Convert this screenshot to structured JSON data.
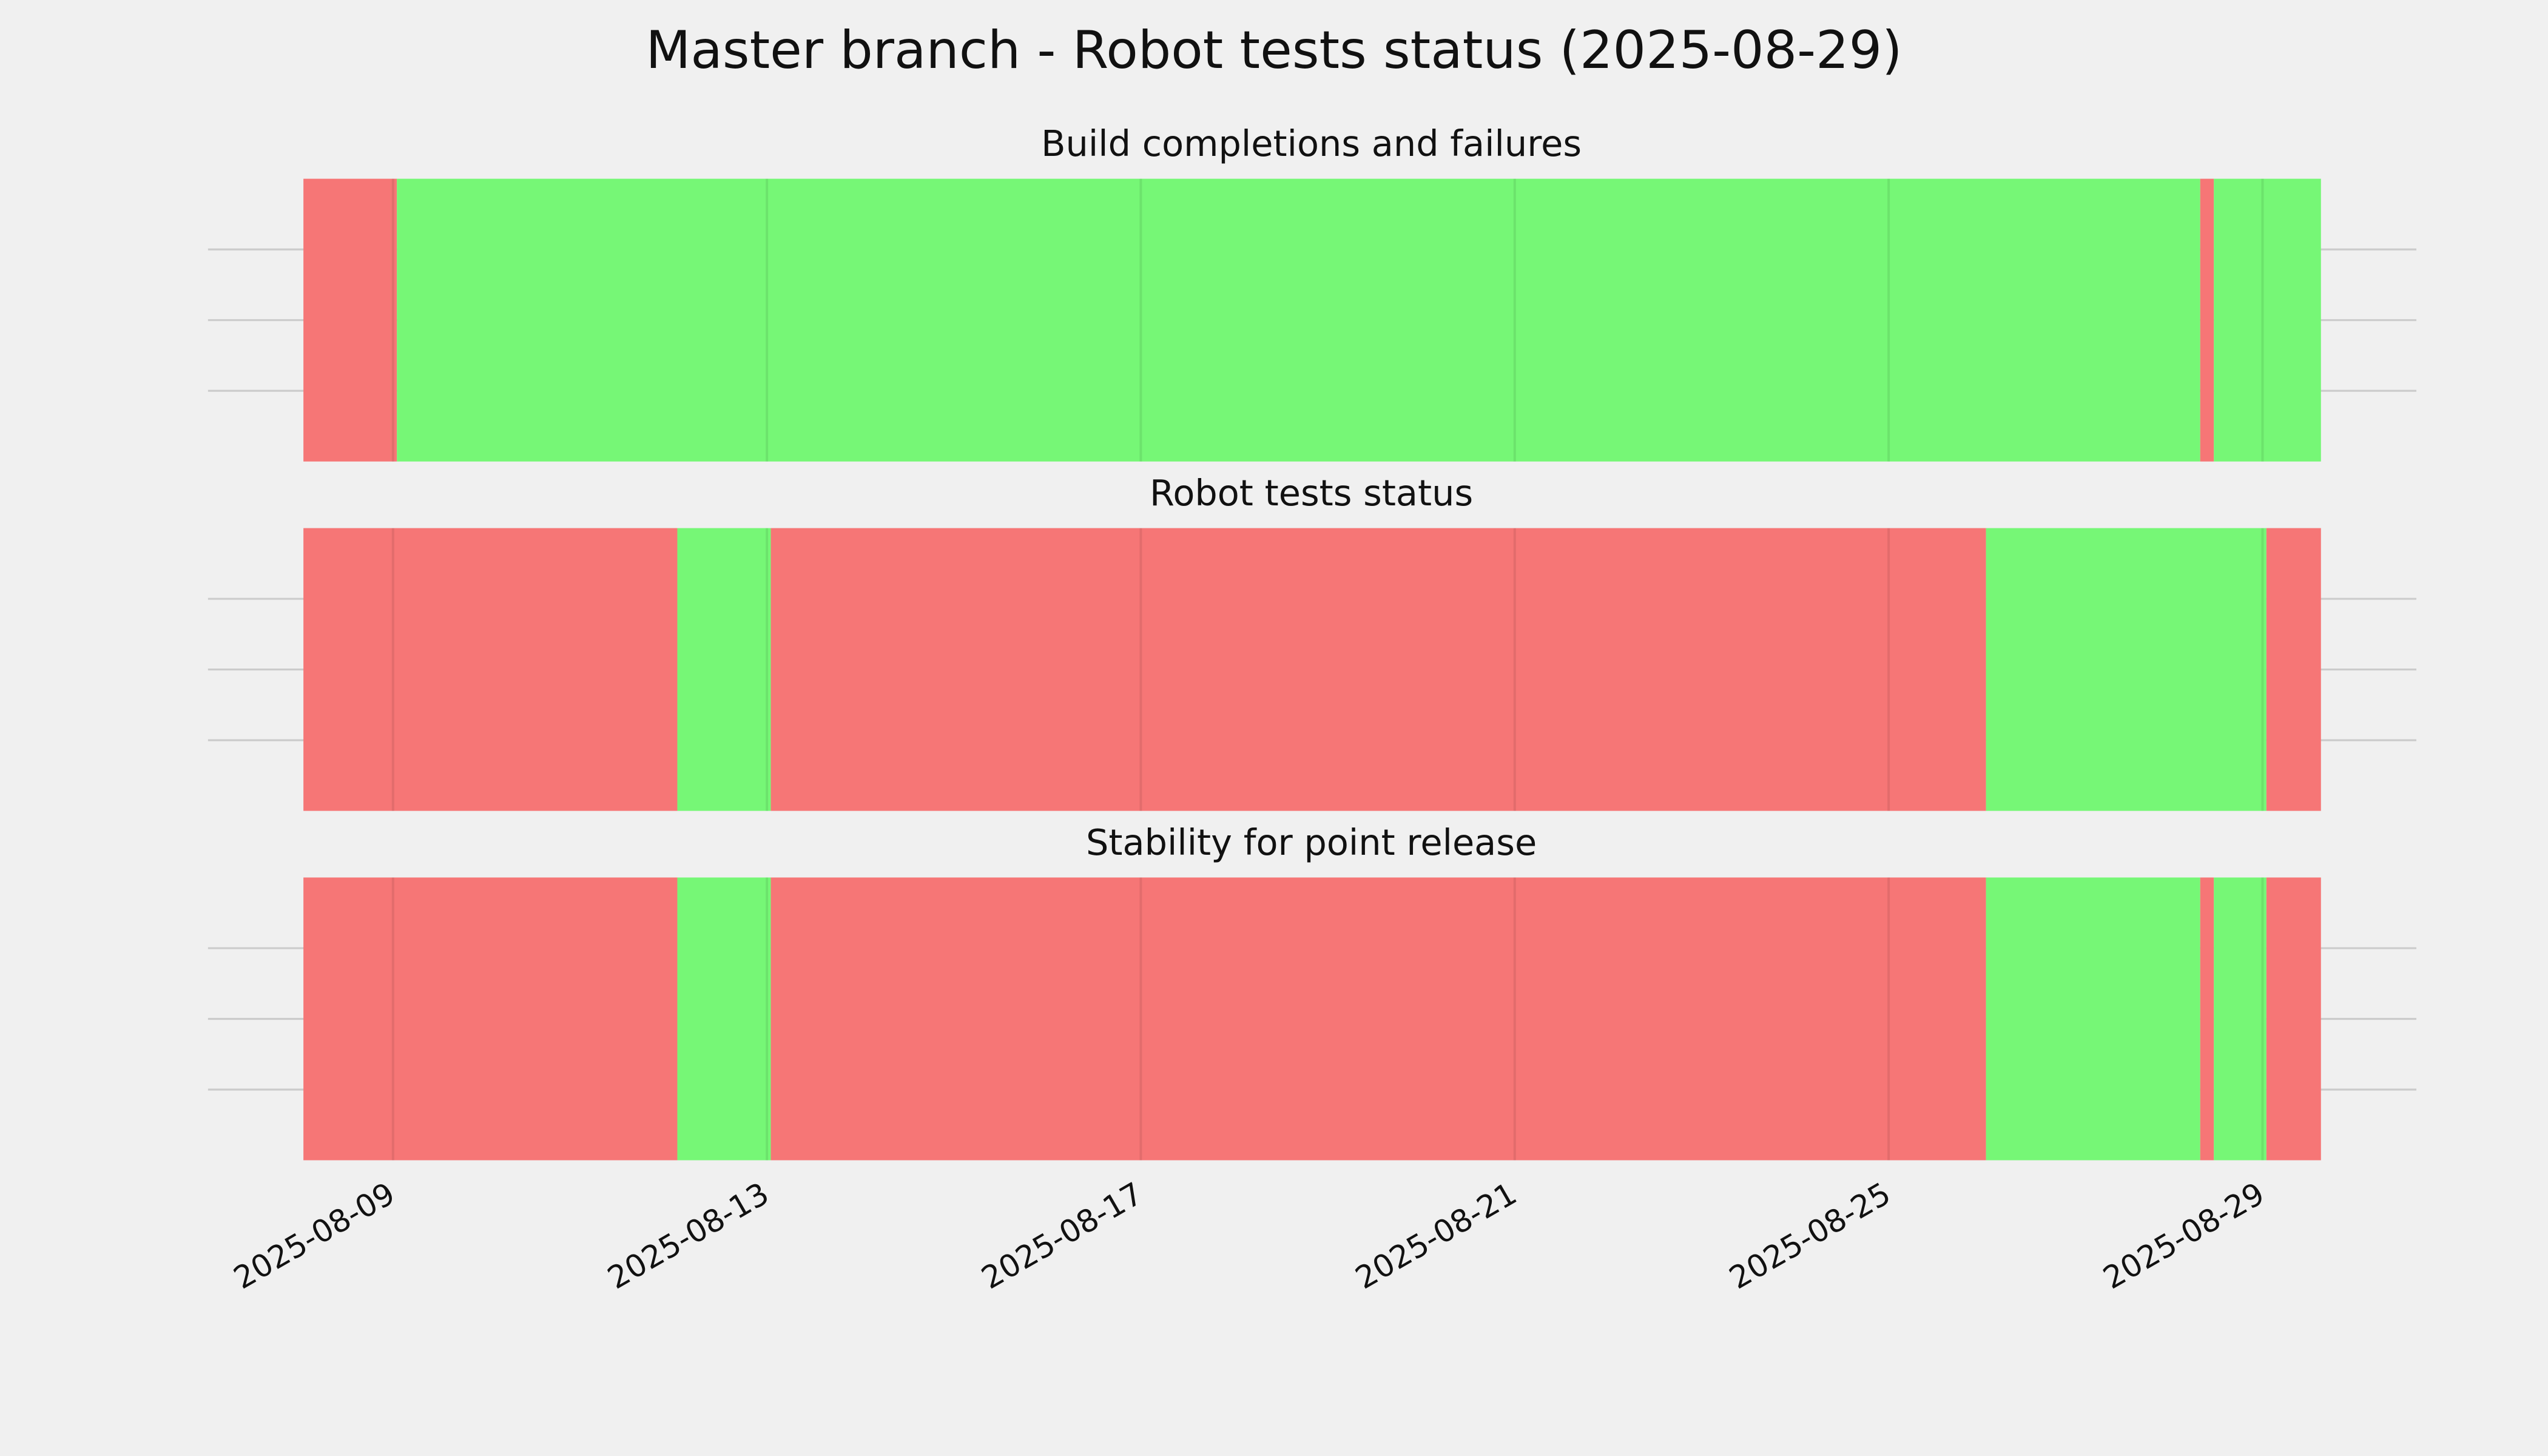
{
  "title": "Master branch - Robot tests status (2025-08-29)",
  "chart_data": [
    {
      "type": "timeline",
      "title": "Build completions and failures",
      "xlim": [
        "2025-08-07 00:30",
        "2025-08-30 15:30"
      ],
      "xticks": [
        "2025-08-09",
        "2025-08-13",
        "2025-08-17",
        "2025-08-21",
        "2025-08-25",
        "2025-08-29"
      ],
      "ylim": [
        0,
        1
      ],
      "yticks": [
        0.25,
        0.5,
        0.75
      ],
      "grid": true,
      "segments": [
        {
          "start": "2025-08-08 01:00",
          "end": "2025-08-09 01:00",
          "color": "#f67676"
        },
        {
          "start": "2025-08-09 01:00",
          "end": "2025-08-28 08:00",
          "color": "#76f776"
        },
        {
          "start": "2025-08-28 08:00",
          "end": "2025-08-28 11:30",
          "color": "#f67676"
        },
        {
          "start": "2025-08-28 11:30",
          "end": "2025-08-29 15:00",
          "color": "#76f776"
        }
      ]
    },
    {
      "type": "timeline",
      "title": "Robot tests status",
      "xlim": [
        "2025-08-07 00:30",
        "2025-08-30 15:30"
      ],
      "xticks": [
        "2025-08-09",
        "2025-08-13",
        "2025-08-17",
        "2025-08-21",
        "2025-08-25",
        "2025-08-29"
      ],
      "ylim": [
        0,
        1
      ],
      "yticks": [
        0.25,
        0.5,
        0.75
      ],
      "grid": true,
      "segments": [
        {
          "start": "2025-08-08 01:00",
          "end": "2025-08-12 01:00",
          "color": "#f67676"
        },
        {
          "start": "2025-08-12 01:00",
          "end": "2025-08-13 01:00",
          "color": "#76f776"
        },
        {
          "start": "2025-08-13 01:00",
          "end": "2025-08-26 01:00",
          "color": "#f67676"
        },
        {
          "start": "2025-08-26 01:00",
          "end": "2025-08-29 01:00",
          "color": "#76f776"
        },
        {
          "start": "2025-08-29 01:00",
          "end": "2025-08-29 15:00",
          "color": "#f67676"
        }
      ]
    },
    {
      "type": "timeline",
      "title": "Stability for point release",
      "xlim": [
        "2025-08-07 00:30",
        "2025-08-30 15:30"
      ],
      "xticks": [
        "2025-08-09",
        "2025-08-13",
        "2025-08-17",
        "2025-08-21",
        "2025-08-25",
        "2025-08-29"
      ],
      "ylim": [
        0,
        1
      ],
      "yticks": [
        0.25,
        0.5,
        0.75
      ],
      "grid": true,
      "segments": [
        {
          "start": "2025-08-08 01:00",
          "end": "2025-08-12 01:00",
          "color": "#f67676"
        },
        {
          "start": "2025-08-12 01:00",
          "end": "2025-08-13 01:00",
          "color": "#76f776"
        },
        {
          "start": "2025-08-13 01:00",
          "end": "2025-08-26 01:00",
          "color": "#f67676"
        },
        {
          "start": "2025-08-26 01:00",
          "end": "2025-08-28 08:00",
          "color": "#76f776"
        },
        {
          "start": "2025-08-28 08:00",
          "end": "2025-08-28 11:30",
          "color": "#f67676"
        },
        {
          "start": "2025-08-28 11:30",
          "end": "2025-08-29 01:00",
          "color": "#76f776"
        },
        {
          "start": "2025-08-29 01:00",
          "end": "2025-08-29 15:00",
          "color": "#f67676"
        }
      ]
    }
  ]
}
